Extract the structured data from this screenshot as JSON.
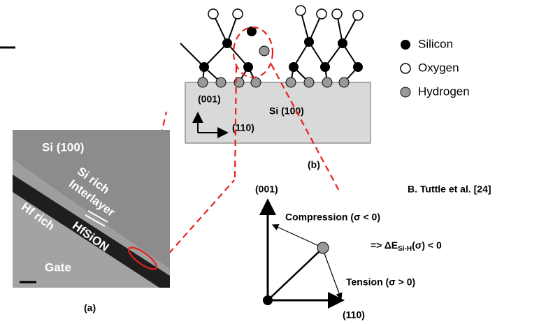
{
  "legend": {
    "items": [
      "Silicon",
      "Oxygen",
      "Hydrogen"
    ]
  },
  "panel_b": {
    "axis_z": "(001)",
    "substrate": "Si (100)",
    "axis_x": "(110)",
    "label": "(b)"
  },
  "panel_a": {
    "substrate": "Si (100)",
    "interlayer": [
      "Si rich",
      "Interlayer"
    ],
    "film": [
      "Hf rich",
      "HfSiON"
    ],
    "gate": "Gate",
    "label": "(a)"
  },
  "panel_c": {
    "axis_y": "(001)",
    "citation": "B. Tuttle et al. [24]",
    "compression": "Compression (σ < 0)",
    "energy": {
      "prefix": "=> ΔE",
      "subscript": "Si-H",
      "suffix": "(σ) < 0"
    },
    "tension": "Tension (σ > 0)",
    "axis_x": "(110)"
  }
}
